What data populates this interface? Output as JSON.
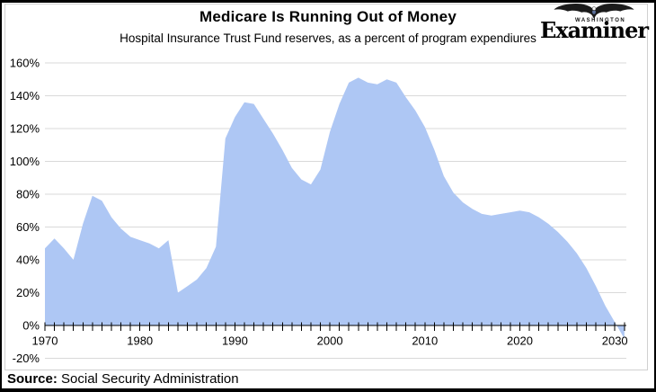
{
  "header": {
    "title": "Medicare Is Running Out of Money",
    "subtitle": "Hospital Insurance Trust Fund reserves, as a percent of program expendiures"
  },
  "logo": {
    "top_word": "WASHINGTON",
    "name": "Examiner",
    "eagle_icon": "eagle-icon"
  },
  "footer": {
    "source_label": "Source:",
    "source_text": " Social Security Administration"
  },
  "chart_data": {
    "type": "area",
    "title": "Medicare Is Running Out of Money",
    "subtitle": "Hospital Insurance Trust Fund reserves, as a percent of program expendiures",
    "series_name": "HI Trust Fund reserves as % of program expenditures",
    "x": [
      1970,
      1971,
      1972,
      1973,
      1974,
      1975,
      1976,
      1977,
      1978,
      1979,
      1980,
      1981,
      1982,
      1983,
      1984,
      1985,
      1986,
      1987,
      1988,
      1989,
      1990,
      1991,
      1992,
      1993,
      1994,
      1995,
      1996,
      1997,
      1998,
      1999,
      2000,
      2001,
      2002,
      2003,
      2004,
      2005,
      2006,
      2007,
      2008,
      2009,
      2010,
      2011,
      2012,
      2013,
      2014,
      2015,
      2016,
      2017,
      2018,
      2019,
      2020,
      2021,
      2022,
      2023,
      2024,
      2025,
      2026,
      2027,
      2028,
      2029,
      2030,
      2031
    ],
    "values": [
      47,
      53,
      47,
      40,
      62,
      79,
      76,
      66,
      59,
      54,
      52,
      50,
      47,
      52,
      20,
      24,
      28,
      35,
      48,
      114,
      127,
      136,
      135,
      126,
      117,
      107,
      96,
      89,
      86,
      95,
      118,
      135,
      148,
      151,
      148,
      147,
      150,
      148,
      139,
      131,
      121,
      107,
      91,
      81,
      75,
      71,
      68,
      67,
      68,
      69,
      70,
      69,
      66,
      62,
      57,
      51,
      44,
      35,
      24,
      12,
      2,
      -8
    ],
    "xlabel": "",
    "ylabel": "",
    "xlim": [
      1970,
      2031.2
    ],
    "ylim": [
      -20,
      160
    ],
    "ytick_values": [
      160,
      140,
      120,
      100,
      80,
      60,
      40,
      20,
      0,
      -20
    ],
    "ytick_labels": [
      "160%",
      "140%",
      "120%",
      "100%",
      "80%",
      "60%",
      "40%",
      "20%",
      "0%",
      "-20%"
    ],
    "xtick_values": [
      1970,
      1980,
      1990,
      2000,
      2010,
      2020,
      2030
    ],
    "xtick_labels": [
      "1970",
      "1980",
      "1990",
      "2000",
      "2010",
      "2020",
      "2030"
    ],
    "minor_xticks_every_year": true,
    "grid": "horizontal",
    "legend": false,
    "fill_color": "#aec7f4",
    "grid_color": "#d9d9d9",
    "axis_color": "#000000"
  }
}
